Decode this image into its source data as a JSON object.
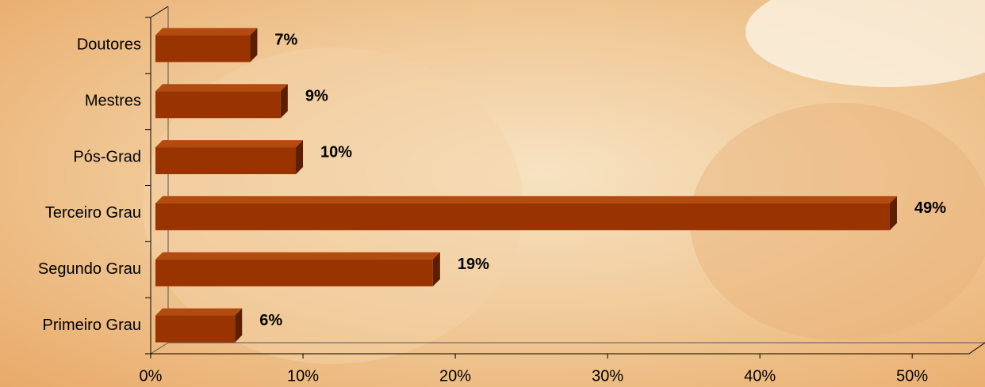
{
  "chart_data": {
    "type": "bar3d-horizontal",
    "categories": [
      "Doutores",
      "Mestres",
      "Pós-Grad",
      "Terceiro Grau",
      "Segundo Grau",
      "Primeiro Grau"
    ],
    "values": [
      7,
      9,
      10,
      49,
      19,
      6
    ],
    "value_labels": [
      "7%",
      "9%",
      "10%",
      "49%",
      "19%",
      "6%"
    ],
    "color": "#993300",
    "xlim": [
      0,
      54
    ],
    "xticks": [
      {
        "value": 0,
        "label": "0%"
      },
      {
        "value": 10,
        "label": "10%"
      },
      {
        "value": 20,
        "label": "20%"
      },
      {
        "value": 30,
        "label": "30%"
      },
      {
        "value": 40,
        "label": "40%"
      },
      {
        "value": 50,
        "label": "50%"
      }
    ]
  }
}
